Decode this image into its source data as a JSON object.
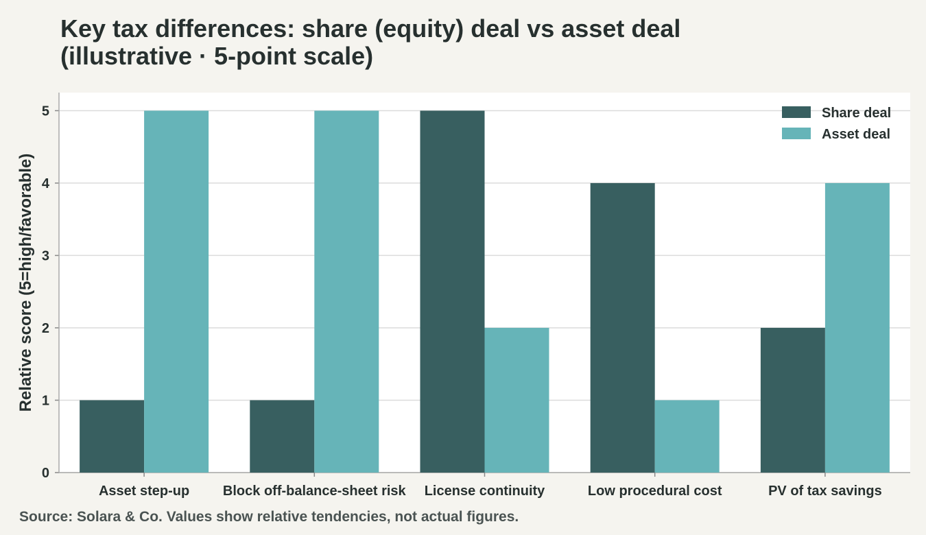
{
  "title_lines": [
    "Key tax differences: share (equity) deal vs asset deal",
    "(illustrative · 5-point scale)"
  ],
  "source": "Source: Solara & Co. Values show relative tendencies, not actual figures.",
  "colors": {
    "share_deal": "#385f60",
    "asset_deal": "#66b4b8",
    "plot_background": "#ffffff",
    "page_background": "#f5f4ef",
    "grid": "#dcdcdc"
  },
  "chart_data": {
    "type": "bar",
    "title": "Key tax differences: share (equity) deal vs asset deal (illustrative · 5-point scale)",
    "xlabel": "",
    "ylabel": "Relative score (5=high/favorable)",
    "categories": [
      "Asset step-up",
      "Block off-balance-sheet risk",
      "License continuity",
      "Low procedural cost",
      "PV of tax savings"
    ],
    "series": [
      {
        "name": "Share deal",
        "values": [
          1,
          1,
          5,
          4,
          2
        ]
      },
      {
        "name": "Asset deal",
        "values": [
          5,
          5,
          2,
          1,
          4
        ]
      }
    ],
    "ylim": [
      0,
      5.25
    ],
    "yticks": [
      0,
      1,
      2,
      3,
      4,
      5
    ],
    "grid": "horizontal",
    "legend_position": "top-right"
  }
}
